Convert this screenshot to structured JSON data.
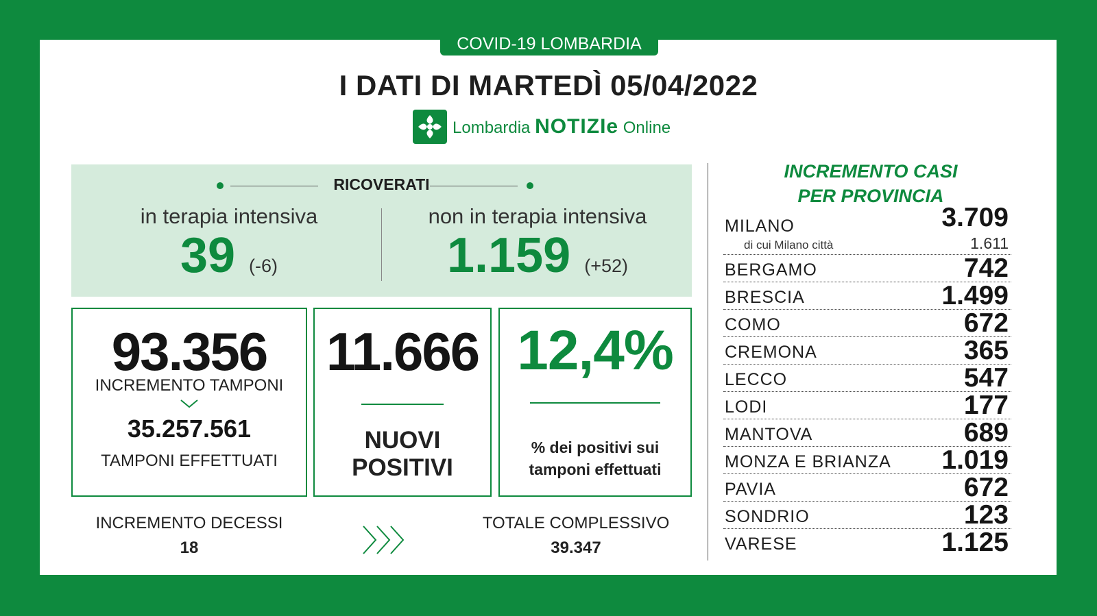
{
  "header": {
    "tag": "COVID-19 LOMBARDIA",
    "title": "I DATI DI MARTEDÌ 05/04/2022",
    "logo_prefix": "Lombardia",
    "logo_brand": "NOTIZIe",
    "logo_suffix": "Online"
  },
  "ricoverati": {
    "heading": "RICOVERATI",
    "intensiva": {
      "label": "in terapia intensiva",
      "value": "39",
      "delta": "(-6)"
    },
    "non_intensiva": {
      "label": "non in terapia intensiva",
      "value": "1.159",
      "delta": "(+52)"
    }
  },
  "tamponi": {
    "increment_value": "93.356",
    "increment_label": "INCREMENTO TAMPONI",
    "total_value": "35.257.561",
    "total_label": "TAMPONI EFFETTUATI"
  },
  "positivi": {
    "value": "11.666",
    "label_line1": "NUOVI",
    "label_line2": "POSITIVI"
  },
  "percentuale": {
    "value": "12,4%",
    "label_line1": "% dei positivi sui",
    "label_line2": "tamponi effettuati"
  },
  "decessi": {
    "label": "INCREMENTO DECESSI",
    "value": "18",
    "total_label": "TOTALE COMPLESSIVO",
    "total_value": "39.347"
  },
  "province": {
    "title_line1": "INCREMENTO CASI",
    "title_line2": "PER PROVINCIA",
    "milano_sub_label": "di cui Milano città",
    "milano_sub_value": "1.611",
    "rows": [
      {
        "name": "MILANO",
        "value": "3.709"
      },
      {
        "name": "BERGAMO",
        "value": "742"
      },
      {
        "name": "BRESCIA",
        "value": "1.499"
      },
      {
        "name": "COMO",
        "value": "672"
      },
      {
        "name": "CREMONA",
        "value": "365"
      },
      {
        "name": "LECCO",
        "value": "547"
      },
      {
        "name": "LODI",
        "value": "177"
      },
      {
        "name": "MANTOVA",
        "value": "689"
      },
      {
        "name": "MONZA E BRIANZA",
        "value": "1.019"
      },
      {
        "name": "PAVIA",
        "value": "672"
      },
      {
        "name": "SONDRIO",
        "value": "123"
      },
      {
        "name": "VARESE",
        "value": "1.125"
      }
    ]
  },
  "colors": {
    "brand_green": "#0e8a3e",
    "panel_green": "#d5ebdc"
  },
  "icons": {
    "logo": "lombardia-rose-icon",
    "chevrons": "triple-chevron-right-icon",
    "arrow": "chevron-down-icon"
  }
}
